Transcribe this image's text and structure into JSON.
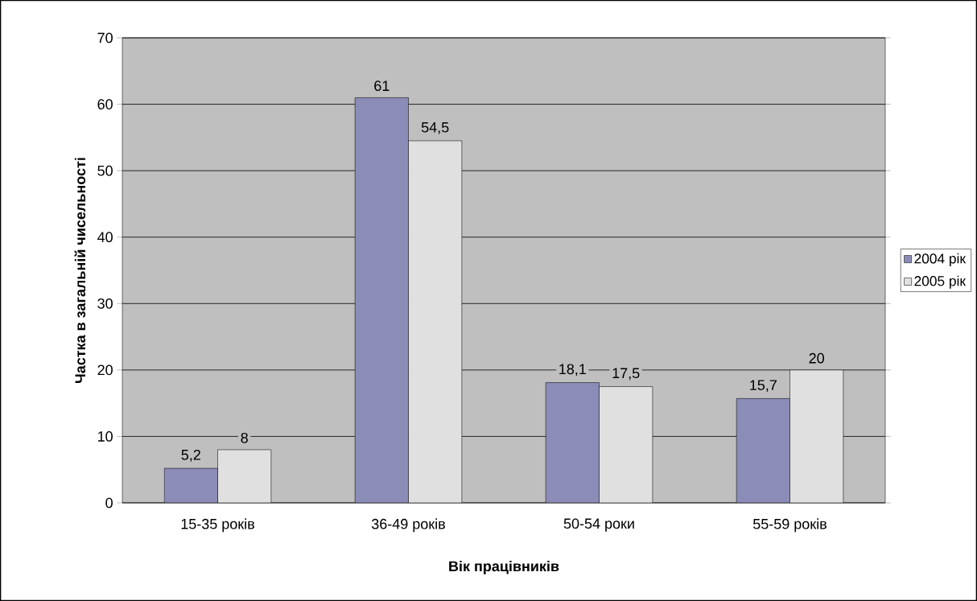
{
  "chart_data": {
    "type": "bar",
    "xlabel": "Вік працівників",
    "ylabel": "Частка в загальній чисельності",
    "categories": [
      "15-35 років",
      "36-49 років",
      "50-54 роки",
      "55-59 років"
    ],
    "series": [
      {
        "name": "2004 рік",
        "color": "#8c8cb8",
        "values": [
          5.2,
          61,
          18.1,
          15.7
        ],
        "value_labels": [
          "5,2",
          "61",
          "18,1",
          "15,7"
        ]
      },
      {
        "name": "2005 рік",
        "color": "#e0e0e0",
        "values": [
          8,
          54.5,
          17.5,
          20
        ],
        "value_labels": [
          "8",
          "54,5",
          "17,5",
          "20"
        ]
      }
    ],
    "ylim": [
      0,
      70
    ],
    "yticks": [
      0,
      10,
      20,
      30,
      40,
      50,
      60,
      70
    ],
    "grid": "y",
    "legend": "right"
  }
}
